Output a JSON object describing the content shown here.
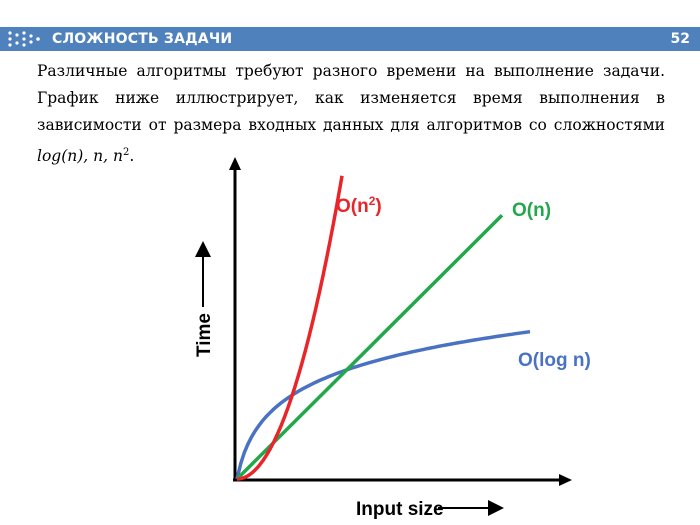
{
  "header": {
    "title": "СЛОЖНОСТЬ ЗАДАЧИ",
    "page_number": "52"
  },
  "paragraph": {
    "line1": "Различные алгоритмы требуют разного времени на выполнение задачи.",
    "line2": "График ниже иллюстрирует, как изменяется время выполнения в",
    "line3": "зависимости от размера входных данных для алгоритмов со сложностями",
    "formula": {
      "log_n": "log(n),",
      "n": "n,",
      "n_base": "n",
      "n_exp": "2",
      "period": "."
    }
  },
  "chart_data": {
    "type": "line",
    "xlabel": "Input size",
    "ylabel": "Time",
    "series": [
      {
        "name": "O(n2)",
        "label_base": "O(n",
        "label_exp": "2",
        "label_close": ")",
        "color": "#e8262a",
        "shape": "quadratic"
      },
      {
        "name": "O(n)",
        "color": "#22a84a",
        "shape": "linear"
      },
      {
        "name": "O(log n)",
        "color": "#4a72c2",
        "shape": "logarithmic"
      }
    ],
    "grid": false
  },
  "colors": {
    "header_bg": "#4f81bd",
    "axis": "#000000"
  },
  "icons": {
    "header": "chevron-arrows-icon"
  }
}
